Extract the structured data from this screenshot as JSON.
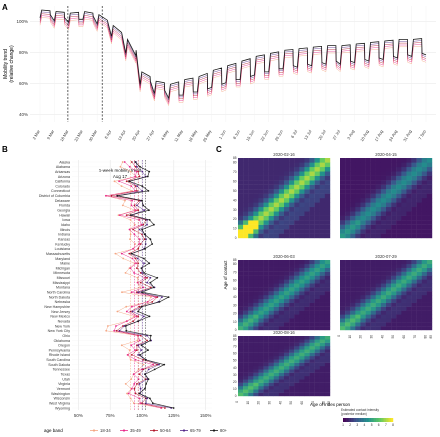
{
  "panels": {
    "A": "A",
    "B": "B",
    "C": "C"
  },
  "chart_data": [
    {
      "id": "A",
      "type": "line",
      "ylabel": "Mobility trend\n(relative change)",
      "yticks": [
        "100%",
        "80%",
        "60%",
        "40%"
      ],
      "ylim": [
        35,
        110
      ],
      "xticks": [
        "2020-03-01",
        "2020-03-08",
        "2020-03-15",
        "2020-03-22",
        "2020-03-29",
        "2020-04-05",
        "2020-04-12",
        "2020-04-19",
        "2020-04-26",
        "2020-05-03",
        "2020-05-10",
        "2020-05-17",
        "2020-05-24",
        "2020-05-31",
        "2020-06-07",
        "2020-06-14",
        "2020-06-21",
        "2020-06-28",
        "2020-07-05",
        "2020-07-12",
        "2020-07-19",
        "2020-07-26",
        "2020-08-02",
        "2020-08-09",
        "2020-08-16",
        "2020-08-23",
        "2020-08-30",
        "2020-09-06"
      ],
      "xtick_labels": [
        "2 Mar",
        "9 Mar",
        "16 Mar",
        "23 Mar",
        "30 Mar",
        "6 Apr",
        "13 Apr",
        "20 Apr",
        "27 Apr",
        "4 May",
        "11 May",
        "18 May",
        "25 May",
        "1 Jun",
        "8 Jun",
        "15 Jun",
        "22 Jun",
        "29 Jun",
        "6 Jul",
        "13 Jul",
        "20 Jul",
        "27 Jul",
        "3 Aug",
        "10 Aug",
        "17 Aug",
        "24 Aug",
        "31 Aug",
        "7 Sep"
      ],
      "vlines": [
        "2020-03-15",
        "2020-04-01"
      ],
      "weekly_baseline_series": {
        "name": "Overall",
        "values": [
          100,
          98,
          97,
          99,
          96,
          88,
          77,
          57,
          51,
          48,
          50,
          52,
          55,
          58,
          60,
          63,
          65,
          67,
          68,
          69,
          70,
          70,
          71,
          72,
          73,
          74,
          75,
          76
        ]
      },
      "weekday_peak_series": {
        "name": "Overall weekday peak",
        "values": [
          105,
          104,
          103,
          104,
          102,
          95,
          86,
          65,
          59,
          57,
          60,
          62,
          66,
          69,
          72,
          75,
          77,
          79,
          80,
          81,
          82,
          82,
          83,
          84,
          85,
          86,
          86,
          87
        ]
      },
      "series": [
        {
          "name": "18-34",
          "offset": -4
        },
        {
          "name": "35-49",
          "offset": -2
        },
        {
          "name": "50-64",
          "offset": 0
        },
        {
          "name": "65-79",
          "offset": 2
        },
        {
          "name": "80+",
          "offset": 4
        }
      ]
    },
    {
      "id": "B",
      "type": "line",
      "title": "1-week mobility trend",
      "subtitle": "Aug 17",
      "xticks": [
        "50%",
        "75%",
        "100%",
        "125%",
        "150%"
      ],
      "xlim": [
        45,
        155
      ],
      "states": [
        "Alaska",
        "Alabama",
        "Arkansas",
        "Arizona",
        "California",
        "Colorado",
        "Connecticut",
        "District of Columbia",
        "Delaware",
        "Florida",
        "Georgia",
        "Hawaii",
        "Iowa",
        "Idaho",
        "Illinois",
        "Indiana",
        "Kansas",
        "Kentucky",
        "Louisiana",
        "Massachusetts",
        "Maryland",
        "Maine",
        "Michigan",
        "Minnesota",
        "Missouri",
        "Mississippi",
        "Montana",
        "North Carolina",
        "North Dakota",
        "Nebraska",
        "New Hampshire",
        "New Jersey",
        "New Mexico",
        "Nevada",
        "New York",
        "New York City",
        "Ohio",
        "Oklahoma",
        "Oregon",
        "Pennsylvania",
        "Rhode Island",
        "South Carolina",
        "South Dakota",
        "Tennessee",
        "Texas",
        "Utah",
        "Virginia",
        "Vermont",
        "Washington",
        "Wisconsin",
        "West Virginia",
        "Wyoming"
      ],
      "legend_title": "age band",
      "series": [
        {
          "name": "18-34",
          "color": "#f4a582",
          "shift": -12
        },
        {
          "name": "35-49",
          "color": "#e7298a",
          "shift": -6
        },
        {
          "name": "50-64",
          "color": "#b2182b",
          "shift": 0
        },
        {
          "name": "65-79",
          "color": "#542788",
          "shift": 5
        },
        {
          "name": "80+",
          "color": "#1a1a1a",
          "shift": 9
        }
      ],
      "base_values": [
        92,
        95,
        97,
        98,
        88,
        95,
        96,
        76,
        98,
        94,
        97,
        88,
        103,
        101,
        93,
        100,
        102,
        99,
        97,
        90,
        95,
        97,
        96,
        99,
        104,
        99,
        107,
        96,
        112,
        108,
        98,
        91,
        97,
        93,
        85,
        80,
        99,
        104,
        96,
        96,
        92,
        101,
        112,
        101,
        98,
        103,
        96,
        94,
        95,
        103,
        100,
        118
      ]
    },
    {
      "id": "C",
      "type": "heatmap",
      "xlabel": "Age of index person",
      "ylabel": "Age of contact",
      "age_bands": [
        "0",
        "5",
        "10",
        "15",
        "20",
        "25",
        "30",
        "35",
        "40",
        "45",
        "50",
        "55",
        "60",
        "65",
        "70",
        "75",
        "80",
        "85"
      ],
      "axis_ticks": [
        "0",
        "10",
        "20",
        "30",
        "40",
        "50",
        "60",
        "70",
        "80",
        "85"
      ],
      "panels": [
        {
          "title": "2020-02-16",
          "intensity": 1.0
        },
        {
          "title": "2020-04-15",
          "intensity": 0.55
        },
        {
          "title": "2020-06-03",
          "intensity": 0.65
        },
        {
          "title": "2020-07-29",
          "intensity": 0.7
        },
        {
          "title": "2020-08-16",
          "intensity": 0.72
        }
      ],
      "colorbar_title": "Estimated contact intensity\n(posterior median)",
      "colorbar_ticks": [
        "1",
        "2",
        "3",
        "4",
        "5",
        "6",
        "7",
        "8"
      ],
      "colorbar_colors": [
        "#440154",
        "#3b528b",
        "#21918c",
        "#5ec962",
        "#fde725"
      ]
    }
  ]
}
